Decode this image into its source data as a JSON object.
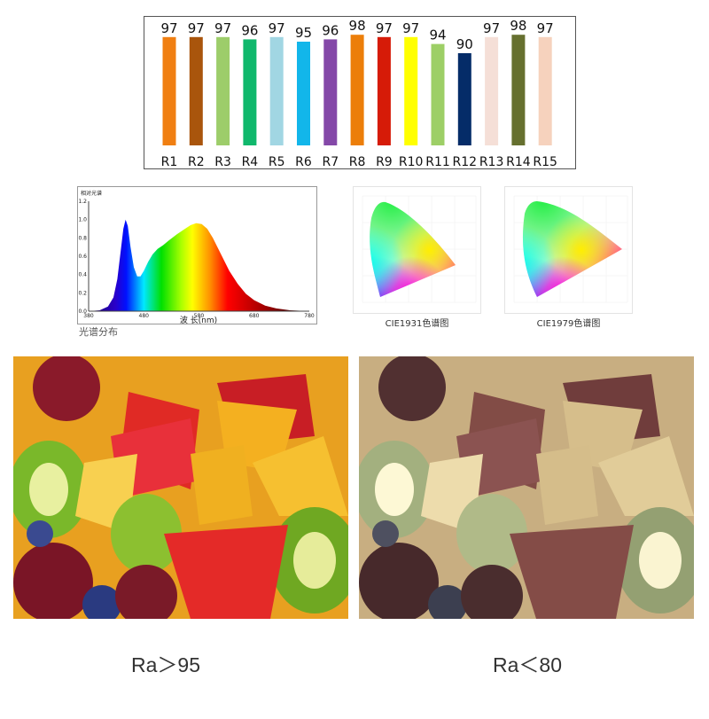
{
  "chart_data": [
    {
      "type": "bar",
      "title": "",
      "categories": [
        "R1",
        "R2",
        "R3",
        "R4",
        "R5",
        "R6",
        "R7",
        "R8",
        "R9",
        "R10",
        "R11",
        "R12",
        "R13",
        "R14",
        "R15"
      ],
      "values": [
        97,
        97,
        97,
        96,
        97,
        95,
        96,
        98,
        97,
        97,
        94,
        90,
        97,
        98,
        97
      ],
      "colors": [
        "#f07f12",
        "#a9550c",
        "#9dcd6a",
        "#10b86c",
        "#a1d6e3",
        "#12b6ea",
        "#8448a8",
        "#ec7e0a",
        "#d61b08",
        "#ffff00",
        "#9dcf66",
        "#052c68",
        "#f5dfd7",
        "#66702f",
        "#f6d2bd"
      ],
      "xlabel": "",
      "ylabel": "",
      "grid": false
    },
    {
      "type": "area",
      "title": "光谱分布",
      "ylabel": "相对光谱",
      "xlabel": "波 长(nm)",
      "xlim": [
        380,
        780
      ],
      "ylim": [
        0,
        1.2
      ],
      "xticks": [
        "380",
        "480",
        "580",
        "680",
        "780"
      ],
      "yticks": [
        "0.0",
        "0.2",
        "0.4",
        "0.6",
        "0.8",
        "1.0",
        "1.2"
      ],
      "x": [
        380,
        400,
        415,
        425,
        432,
        438,
        443,
        447,
        451,
        456,
        462,
        468,
        474,
        480,
        488,
        496,
        505,
        515,
        525,
        540,
        555,
        565,
        575,
        585,
        595,
        605,
        620,
        635,
        650,
        665,
        680,
        700,
        720,
        745,
        780
      ],
      "y": [
        0,
        0.01,
        0.05,
        0.15,
        0.35,
        0.65,
        0.9,
        1.0,
        0.93,
        0.7,
        0.48,
        0.38,
        0.38,
        0.44,
        0.54,
        0.62,
        0.68,
        0.72,
        0.77,
        0.84,
        0.9,
        0.94,
        0.96,
        0.95,
        0.9,
        0.8,
        0.62,
        0.44,
        0.3,
        0.19,
        0.12,
        0.06,
        0.03,
        0.01,
        0
      ]
    }
  ],
  "cie": [
    {
      "caption": "CIE1931色谱图"
    },
    {
      "caption": "CIE1979色谱图"
    }
  ],
  "comparison": {
    "left_label": "Ra＞95",
    "right_label": "Ra＜80"
  }
}
